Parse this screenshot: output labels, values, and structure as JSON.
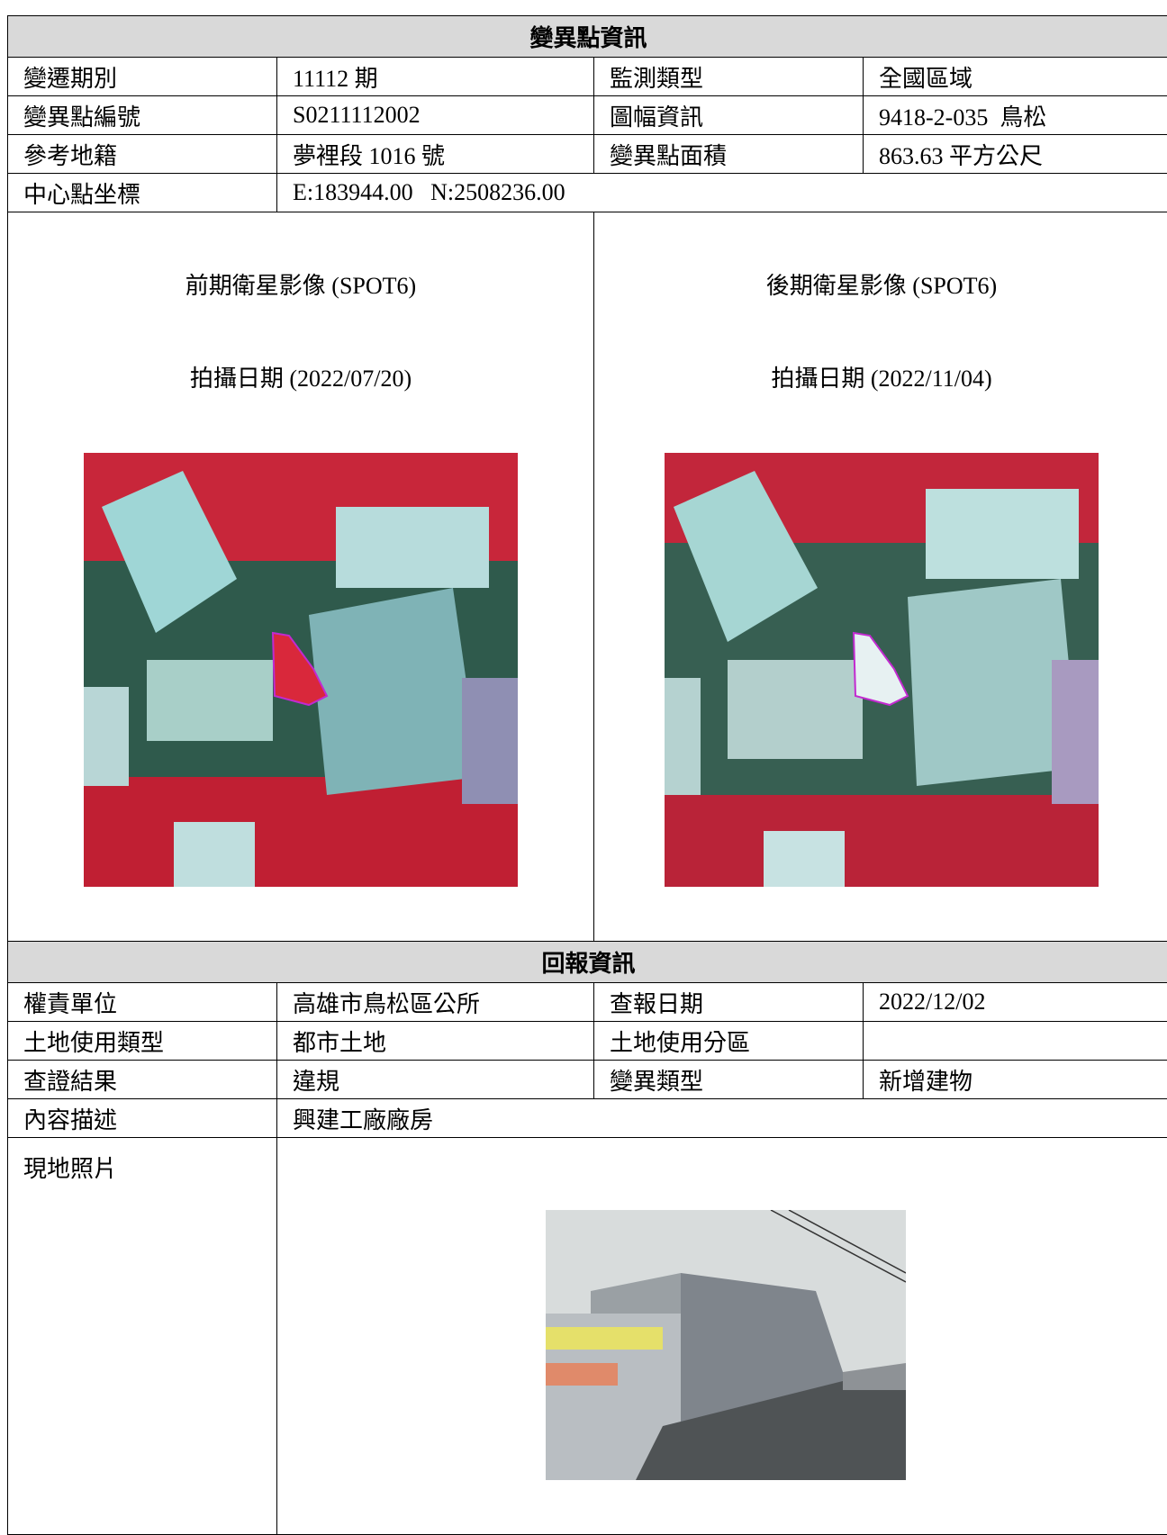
{
  "section1": {
    "title": "變異點資訊",
    "rows": [
      [
        "變遷期別",
        "11112 期",
        "監測類型",
        "全國區域"
      ],
      [
        "變異點編號",
        "S0211112002",
        "圖幅資訊",
        "9418-2-035  鳥松"
      ],
      [
        "參考地籍",
        "夢裡段 1016 號",
        "變異點面積",
        "863.63 平方公尺"
      ]
    ],
    "center": {
      "label": "中心點坐標",
      "value": "E:183944.00   N:2508236.00"
    },
    "images": [
      {
        "caption": "前期衛星影像 (SPOT6)",
        "date": "拍攝日期 (2022/07/20)"
      },
      {
        "caption": "後期衛星影像 (SPOT6)",
        "date": "拍攝日期 (2022/11/04)"
      }
    ]
  },
  "section2": {
    "title": "回報資訊",
    "rows": [
      [
        "權責單位",
        "高雄市鳥松區公所",
        "查報日期",
        "2022/12/02"
      ],
      [
        "土地使用類型",
        "都市土地",
        "土地使用分區"
      ],
      [
        "查證結果",
        "違規",
        "變異類型",
        "新增建物"
      ]
    ],
    "description": {
      "label": "內容描述",
      "value": "興建工廠廠房"
    },
    "photo": {
      "label": "現地照片"
    }
  }
}
